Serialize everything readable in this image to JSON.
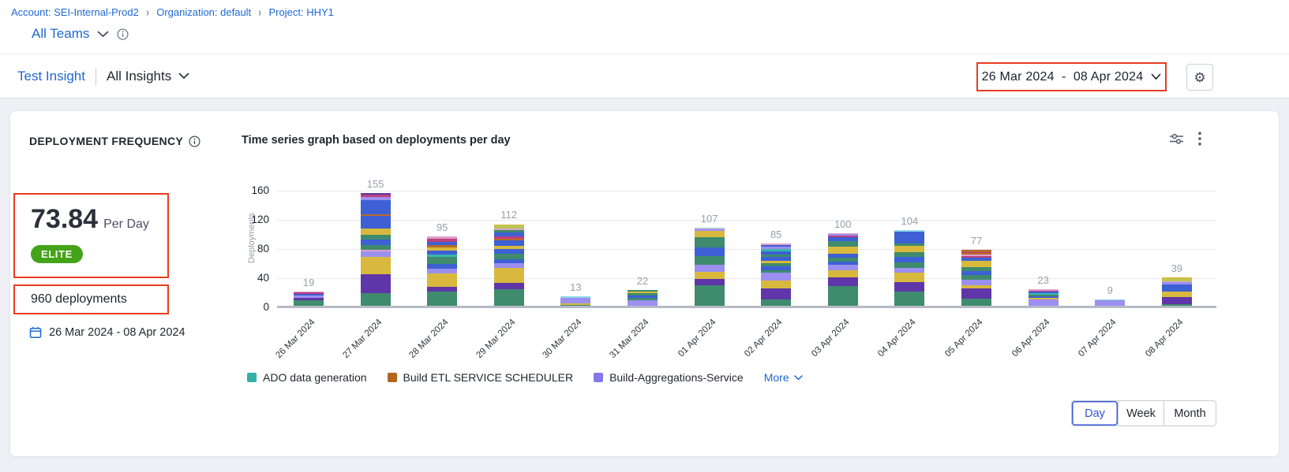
{
  "breadcrumb": {
    "items": [
      {
        "label": "Account: SEI-Internal-Prod2"
      },
      {
        "label": "Organization: default"
      },
      {
        "label": "Project: HHY1"
      }
    ]
  },
  "team_selector": {
    "label": "All Teams"
  },
  "toolbar": {
    "insight_link": "Test Insight",
    "insights_dropdown": "All Insights",
    "date_range": "26 Mar 2024  -  08 Apr 2024"
  },
  "widget": {
    "title": "DEPLOYMENT FREQUENCY",
    "metric_value": "73.84",
    "metric_unit": "Per Day",
    "badge": "ELITE",
    "total_deployments": "960 deployments",
    "date_range": "26 Mar 2024 - 08 Apr 2024"
  },
  "legend": {
    "items": [
      {
        "label": "ADO data generation",
        "color": "#35b0a8"
      },
      {
        "label": "Build ETL SERVICE SCHEDULER",
        "color": "#b4641f"
      },
      {
        "label": "Build-Aggregations-Service",
        "color": "#8678e8"
      }
    ],
    "more_label": "More"
  },
  "granularity": {
    "options": [
      "Day",
      "Week",
      "Month"
    ],
    "active": "Day"
  },
  "chart_data": {
    "type": "bar",
    "stacked": true,
    "title": "Time series graph based on deployments per day",
    "xlabel": "",
    "ylabel": "Deployments",
    "ylim": [
      0,
      160
    ],
    "yticks": [
      0,
      40,
      80,
      120,
      160
    ],
    "grid": true,
    "legend_position": "bottom",
    "categories": [
      "26 Mar 2024",
      "27 Mar 2024",
      "28 Mar 2024",
      "29 Mar 2024",
      "30 Mar 2024",
      "31 Mar 2024",
      "01 Apr 2024",
      "02 Apr 2024",
      "03 Apr 2024",
      "04 Apr 2024",
      "05 Apr 2024",
      "06 Apr 2024",
      "07 Apr 2024",
      "08 Apr 2024"
    ],
    "totals": [
      19,
      155,
      95,
      112,
      13,
      22,
      107,
      85,
      100,
      104,
      77,
      23,
      9,
      39
    ],
    "series_note": "stacked segments per pipeline, bottom-to-top, values estimated from pixels; totals are exact labels",
    "palette": {
      "green": "#3e8b6d",
      "purple": "#5f36a9",
      "gold": "#d8b93d",
      "lavender": "#9b90f0",
      "blue": "#3d60d5",
      "orange": "#b96a28",
      "teal": "#3ab6ae",
      "magenta": "#bc3f7e",
      "pink": "#dfa0cb",
      "cyan": "#8ed9e8",
      "lime": "#b9c754"
    },
    "bars": [
      [
        [
          "green",
          8
        ],
        [
          "purple",
          3
        ],
        [
          "lavender",
          3
        ],
        [
          "blue",
          2
        ],
        [
          "magenta",
          2
        ],
        [
          "pink",
          1
        ]
      ],
      [
        [
          "green",
          17
        ],
        [
          "purple",
          26
        ],
        [
          "gold",
          24
        ],
        [
          "lavender",
          8
        ],
        [
          "pink",
          2
        ],
        [
          "green",
          6
        ],
        [
          "blue",
          8
        ],
        [
          "green",
          6
        ],
        [
          "gold",
          9
        ],
        [
          "blue",
          17
        ],
        [
          "orange",
          2
        ],
        [
          "blue",
          20
        ],
        [
          "lavender",
          4
        ],
        [
          "magenta",
          4
        ],
        [
          "purple",
          2
        ]
      ],
      [
        [
          "green",
          20
        ],
        [
          "purple",
          6
        ],
        [
          "gold",
          18
        ],
        [
          "lavender",
          7
        ],
        [
          "blue",
          6
        ],
        [
          "green",
          10
        ],
        [
          "teal",
          3
        ],
        [
          "blue",
          6
        ],
        [
          "gold",
          4
        ],
        [
          "orange",
          3
        ],
        [
          "blue",
          5
        ],
        [
          "magenta",
          4
        ],
        [
          "pink",
          3
        ]
      ],
      [
        [
          "green",
          23
        ],
        [
          "purple",
          8
        ],
        [
          "gold",
          21
        ],
        [
          "lavender",
          6
        ],
        [
          "blue",
          6
        ],
        [
          "green",
          7
        ],
        [
          "blue",
          7
        ],
        [
          "gold",
          4
        ],
        [
          "blue",
          8
        ],
        [
          "orange",
          2
        ],
        [
          "magenta",
          3
        ],
        [
          "blue",
          6
        ],
        [
          "green",
          3
        ],
        [
          "pink",
          2
        ],
        [
          "lime",
          4
        ],
        [
          "gold",
          2
        ]
      ],
      [
        [
          "green",
          1
        ],
        [
          "gold",
          2
        ],
        [
          "lavender",
          8
        ],
        [
          "cyan",
          2
        ]
      ],
      [
        [
          "lavender",
          8
        ],
        [
          "green",
          3
        ],
        [
          "blue",
          3
        ],
        [
          "green",
          3
        ],
        [
          "gold",
          3
        ],
        [
          "green",
          2
        ]
      ],
      [
        [
          "green",
          28
        ],
        [
          "purple",
          9
        ],
        [
          "gold",
          10
        ],
        [
          "lavender",
          9
        ],
        [
          "green",
          12
        ],
        [
          "blue",
          12
        ],
        [
          "green",
          14
        ],
        [
          "gold",
          9
        ],
        [
          "lavender",
          2
        ],
        [
          "pink",
          1
        ],
        [
          "cyan",
          1
        ]
      ],
      [
        [
          "green",
          9
        ],
        [
          "purple",
          15
        ],
        [
          "gold",
          11
        ],
        [
          "lavender",
          6
        ],
        [
          "lavender",
          4
        ],
        [
          "green",
          4
        ],
        [
          "blue",
          5
        ],
        [
          "green",
          4
        ],
        [
          "gold",
          4
        ],
        [
          "blue",
          5
        ],
        [
          "green",
          3
        ],
        [
          "blue",
          5
        ],
        [
          "teal",
          3
        ],
        [
          "lavender",
          3
        ],
        [
          "blue",
          2
        ],
        [
          "pink",
          2
        ]
      ],
      [
        [
          "green",
          27
        ],
        [
          "purple",
          12
        ],
        [
          "gold",
          10
        ],
        [
          "lavender",
          7
        ],
        [
          "blue",
          5
        ],
        [
          "green",
          5
        ],
        [
          "blue",
          5
        ],
        [
          "gold",
          10
        ],
        [
          "green",
          8
        ],
        [
          "blue",
          5
        ],
        [
          "magenta",
          2
        ],
        [
          "lavender",
          2
        ],
        [
          "pink",
          2
        ]
      ],
      [
        [
          "green",
          20
        ],
        [
          "purple",
          12
        ],
        [
          "gold",
          13
        ],
        [
          "lavender",
          7
        ],
        [
          "green",
          8
        ],
        [
          "blue",
          7
        ],
        [
          "green",
          7
        ],
        [
          "gold",
          8
        ],
        [
          "green",
          4
        ],
        [
          "blue",
          10
        ],
        [
          "blue",
          6
        ],
        [
          "cyan",
          2
        ]
      ],
      [
        [
          "green",
          10
        ],
        [
          "purple",
          14
        ],
        [
          "gold",
          4
        ],
        [
          "lavender",
          8
        ],
        [
          "green",
          6
        ],
        [
          "blue",
          6
        ],
        [
          "green",
          5
        ],
        [
          "gold",
          9
        ],
        [
          "blue",
          4
        ],
        [
          "magenta",
          2
        ],
        [
          "pink",
          2
        ],
        [
          "orange",
          2
        ],
        [
          "magenta",
          2
        ],
        [
          "orange",
          3
        ]
      ],
      [
        [
          "lavender",
          9
        ],
        [
          "gold",
          2
        ],
        [
          "blue",
          2
        ],
        [
          "green",
          2
        ],
        [
          "teal",
          2
        ],
        [
          "blue",
          2
        ],
        [
          "magenta",
          2
        ],
        [
          "pink",
          2
        ]
      ],
      [
        [
          "lavender",
          8
        ],
        [
          "cyan",
          1
        ]
      ],
      [
        [
          "green",
          2
        ],
        [
          "purple",
          10
        ],
        [
          "gold",
          8
        ],
        [
          "blue",
          5
        ],
        [
          "blue",
          4
        ],
        [
          "lavender",
          3
        ],
        [
          "pink",
          2
        ],
        [
          "lime",
          3
        ],
        [
          "gold",
          2
        ]
      ]
    ]
  }
}
